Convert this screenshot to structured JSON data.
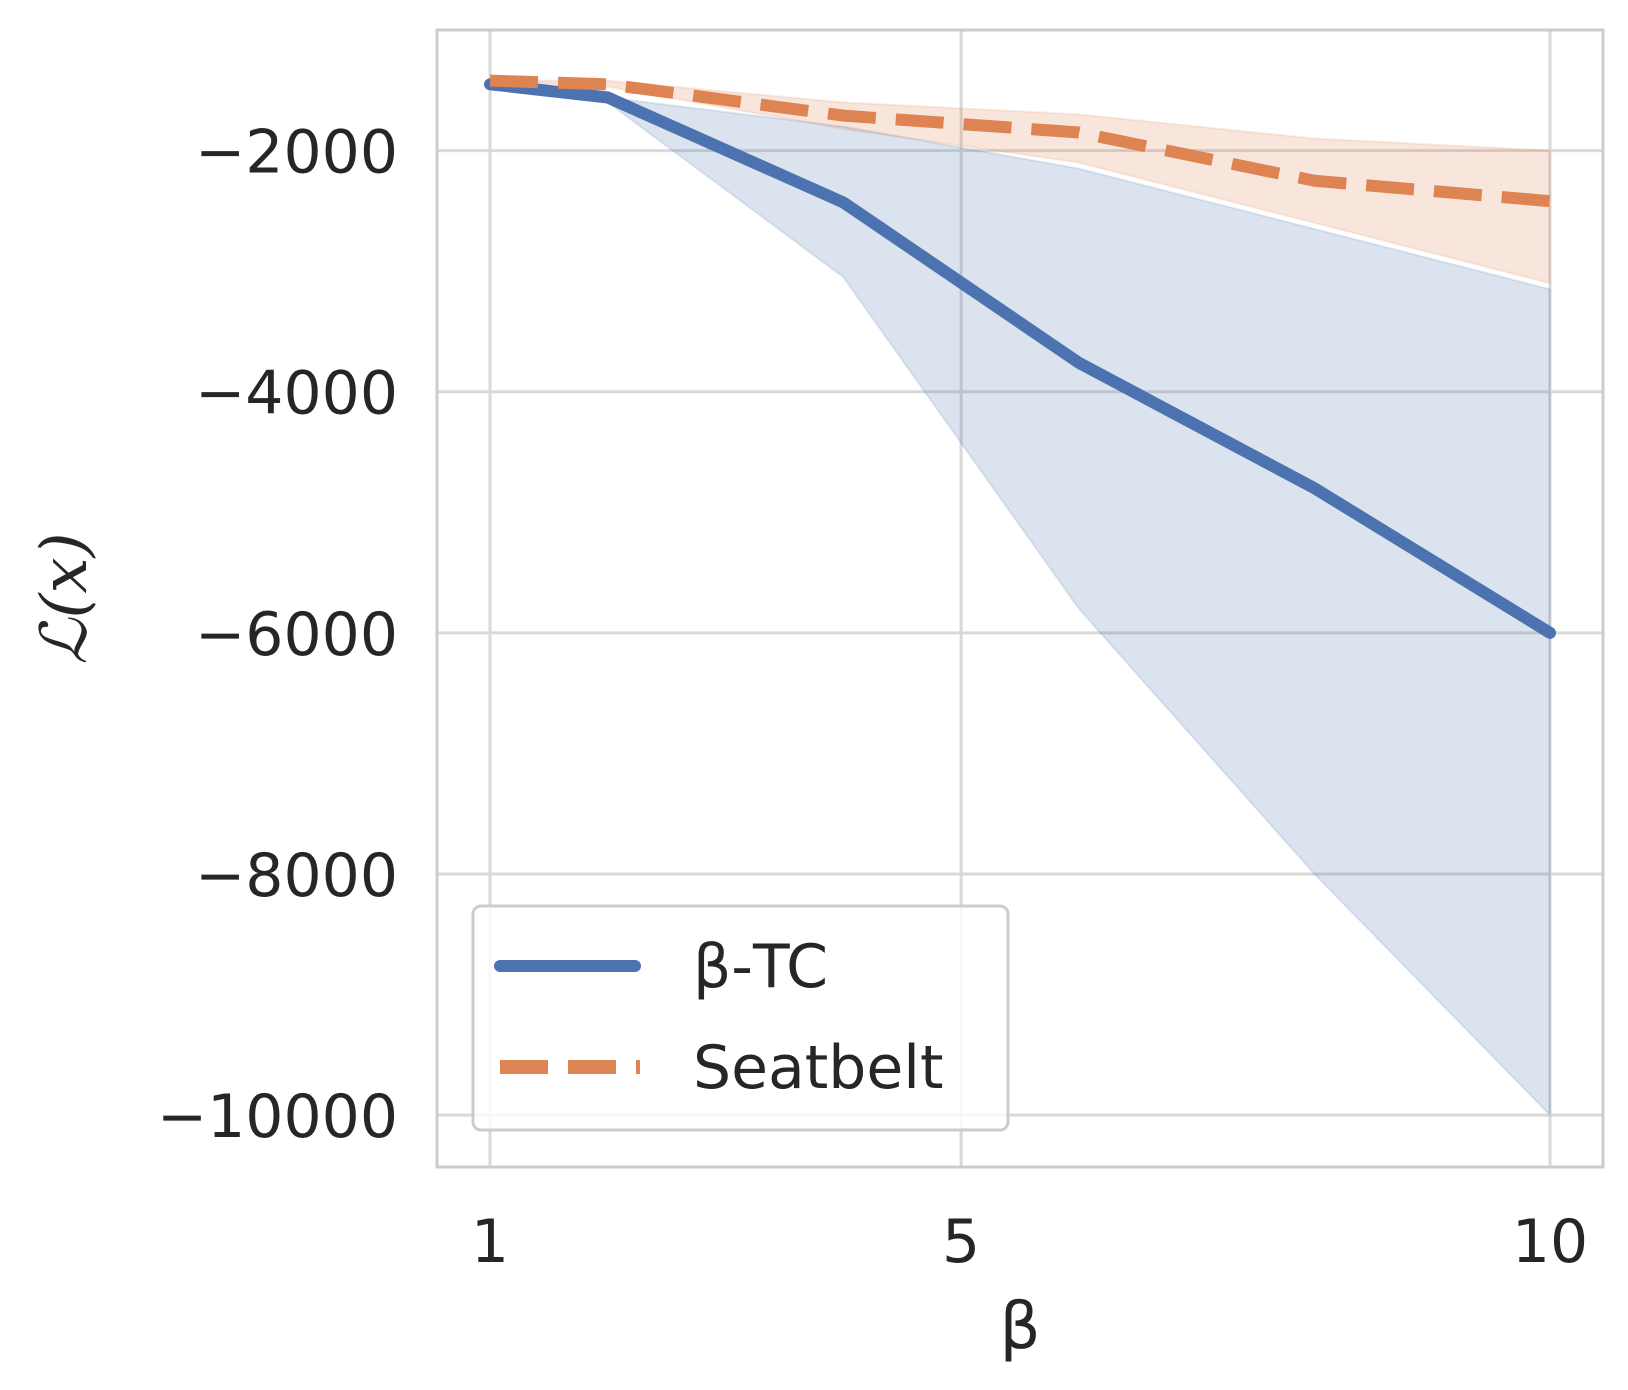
{
  "chart_data": {
    "type": "line",
    "xlabel": "β",
    "ylabel": "ℒ(x)",
    "xlim": [
      0.55,
      10.45
    ],
    "ylim": [
      -10430,
      -1000
    ],
    "xticks": [
      1,
      5,
      10
    ],
    "xtick_labels": [
      "1",
      "5",
      "10"
    ],
    "yticks": [
      -2000,
      -4000,
      -6000,
      -8000,
      -10000
    ],
    "ytick_labels": [
      "−2000",
      "−4000",
      "−6000",
      "−8000",
      "−10000"
    ],
    "grid": true,
    "legend_position": "lower-left",
    "x": [
      1,
      2,
      4,
      6,
      8,
      10
    ],
    "series": [
      {
        "name": "β-TC",
        "style": "solid",
        "color": "#4c72b0",
        "values": [
          -1450,
          -1560,
          -2430,
          -3760,
          -4800,
          -6000
        ],
        "band_low": [
          -1450,
          -1600,
          -3050,
          -5800,
          -8000,
          -10000
        ],
        "band_high": [
          -1450,
          -1560,
          -1800,
          -2150,
          -2650,
          -3150
        ]
      },
      {
        "name": "Seatbelt",
        "style": "dashed",
        "color": "#dd8452",
        "values": [
          -1420,
          -1450,
          -1710,
          -1850,
          -2250,
          -2420
        ],
        "band_low": [
          -1420,
          -1470,
          -1820,
          -2100,
          -2600,
          -3100
        ],
        "band_high": [
          -1420,
          -1420,
          -1600,
          -1700,
          -1900,
          -2000
        ]
      }
    ]
  }
}
